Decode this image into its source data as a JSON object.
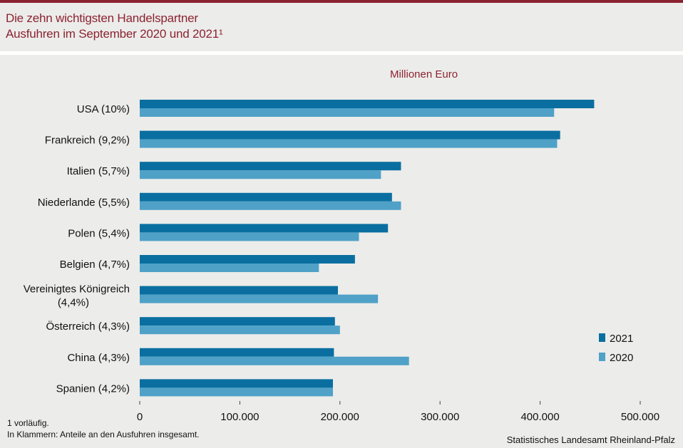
{
  "header": {
    "title_line1": "Die zehn wichtigsten Handelspartner",
    "title_line2": "Ausfuhren im September 2020 und 2021¹"
  },
  "colors": {
    "accent": "#8b2331",
    "series_2021": "#0a6fa0",
    "series_2020": "#4fa1c8",
    "background": "#ececea"
  },
  "chart_data": {
    "type": "bar",
    "orientation": "horizontal",
    "unit_label": "Millionen Euro",
    "categories": [
      [
        "USA (10%)"
      ],
      [
        "Frankreich (9,2%)"
      ],
      [
        "Italien (5,7%)"
      ],
      [
        "Niederlande (5,5%)"
      ],
      [
        "Polen (5,4%)"
      ],
      [
        "Belgien (4,7%)"
      ],
      [
        "Vereinigtes Königreich",
        "(4,4%)"
      ],
      [
        "Österreich (4,3%)"
      ],
      [
        "China (4,3%)"
      ],
      [
        "Spanien (4,2%)"
      ]
    ],
    "series": [
      {
        "name": "2021",
        "values": [
          454000,
          420000,
          261000,
          252000,
          248000,
          215000,
          198000,
          195000,
          194000,
          193000
        ]
      },
      {
        "name": "2020",
        "values": [
          414000,
          417000,
          241000,
          261000,
          219000,
          179000,
          238000,
          200000,
          269000,
          193000
        ]
      }
    ],
    "xlim": [
      0,
      500000
    ],
    "xticks": [
      0,
      100000,
      200000,
      300000,
      400000,
      500000
    ],
    "xtick_labels": [
      "0",
      "100.000",
      "200.000",
      "300.000",
      "400.000",
      "500.000"
    ],
    "grid": false,
    "legend_position": "bottom-right"
  },
  "footnotes": {
    "line1": "1 vorläufig.",
    "line2": "In Klammern: Anteile an den Ausfuhren insgesamt."
  },
  "source": "Statistisches Landesamt Rheinland-Pfalz"
}
